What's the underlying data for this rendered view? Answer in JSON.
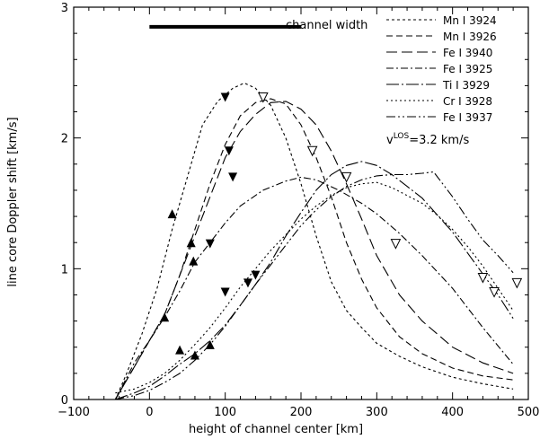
{
  "chart_data": {
    "type": "line",
    "title": "",
    "xlabel": "height of channel center [km]",
    "ylabel": "line core Doppler shift [km/s]",
    "xlim": [
      -100,
      500
    ],
    "ylim": [
      0,
      3
    ],
    "xticks": [
      "−100",
      "0",
      "100",
      "200",
      "300",
      "400",
      "500"
    ],
    "yticks": [
      "0",
      "1",
      "2",
      "3"
    ],
    "grid": false,
    "legend_position": "top-right",
    "annotation_channel_width": "channel width",
    "channel_width_bar": [
      0,
      200,
      2.85
    ],
    "annotation_vlos": "v",
    "annotation_vlos_sup": "LOS",
    "annotation_vlos_value": "=3.2 km/s",
    "series": [
      {
        "name": "Mn I 3924",
        "dash": "3,3",
        "x": [
          -45,
          -30,
          -10,
          10,
          30,
          50,
          70,
          90,
          110,
          125,
          140,
          160,
          180,
          200,
          220,
          240,
          260,
          280,
          300,
          330,
          360,
          400,
          440,
          480
        ],
        "y": [
          0.0,
          0.2,
          0.5,
          0.85,
          1.3,
          1.7,
          2.1,
          2.28,
          2.38,
          2.42,
          2.38,
          2.25,
          2.0,
          1.65,
          1.25,
          0.9,
          0.68,
          0.55,
          0.43,
          0.33,
          0.25,
          0.17,
          0.12,
          0.08
        ]
      },
      {
        "name": "Mn I 3926",
        "dash": "7,4",
        "x": [
          -45,
          -20,
          0,
          20,
          40,
          60,
          80,
          100,
          120,
          140,
          160,
          180,
          200,
          220,
          240,
          260,
          280,
          300,
          330,
          360,
          400,
          440,
          480
        ],
        "y": [
          0.0,
          0.25,
          0.45,
          0.65,
          0.95,
          1.3,
          1.65,
          1.95,
          2.17,
          2.27,
          2.3,
          2.26,
          2.1,
          1.85,
          1.55,
          1.2,
          0.92,
          0.7,
          0.48,
          0.35,
          0.24,
          0.18,
          0.15
        ]
      },
      {
        "name": "Fe I 3940",
        "dash": "12,5",
        "x": [
          -45,
          -20,
          0,
          20,
          40,
          60,
          80,
          100,
          120,
          140,
          160,
          180,
          200,
          220,
          240,
          260,
          280,
          300,
          330,
          360,
          400,
          440,
          480
        ],
        "y": [
          0.0,
          0.25,
          0.45,
          0.65,
          0.95,
          1.25,
          1.55,
          1.85,
          2.05,
          2.18,
          2.27,
          2.28,
          2.22,
          2.1,
          1.9,
          1.65,
          1.38,
          1.1,
          0.8,
          0.6,
          0.4,
          0.28,
          0.2
        ]
      },
      {
        "name": "Fe I 3925",
        "dash": "8,3,2,3",
        "x": [
          -45,
          -20,
          0,
          20,
          40,
          60,
          80,
          100,
          120,
          150,
          180,
          200,
          220,
          250,
          280,
          300,
          330,
          360,
          400,
          440,
          480
        ],
        "y": [
          0.0,
          0.28,
          0.45,
          0.63,
          0.83,
          1.05,
          1.2,
          1.35,
          1.48,
          1.6,
          1.67,
          1.7,
          1.68,
          1.6,
          1.5,
          1.42,
          1.27,
          1.1,
          0.85,
          0.55,
          0.27
        ]
      },
      {
        "name": "Ti I 3929",
        "dash": "14,3,2,3",
        "x": [
          -45,
          -20,
          0,
          20,
          40,
          60,
          80,
          100,
          120,
          140,
          160,
          180,
          200,
          220,
          240,
          260,
          280,
          300,
          320,
          340,
          360,
          380,
          400,
          420,
          440,
          460,
          480
        ],
        "y": [
          0.0,
          0.05,
          0.1,
          0.18,
          0.27,
          0.35,
          0.45,
          0.57,
          0.72,
          0.88,
          1.05,
          1.25,
          1.43,
          1.6,
          1.72,
          1.79,
          1.82,
          1.79,
          1.72,
          1.63,
          1.54,
          1.41,
          1.28,
          1.12,
          0.96,
          0.8,
          0.62
        ]
      },
      {
        "name": "Cr I 3928",
        "dash": "2,3",
        "x": [
          -45,
          -20,
          0,
          20,
          40,
          60,
          80,
          100,
          120,
          140,
          160,
          180,
          200,
          220,
          240,
          260,
          280,
          300,
          320,
          340,
          360,
          380,
          400,
          420,
          440,
          460,
          480
        ],
        "y": [
          0.05,
          0.08,
          0.13,
          0.2,
          0.3,
          0.42,
          0.55,
          0.7,
          0.86,
          1.0,
          1.14,
          1.26,
          1.38,
          1.48,
          1.56,
          1.62,
          1.65,
          1.66,
          1.62,
          1.56,
          1.5,
          1.41,
          1.3,
          1.17,
          1.02,
          0.85,
          0.68
        ]
      },
      {
        "name": "Fe I 3937",
        "dash": "10,3,2,3,2,3",
        "x": [
          -45,
          -20,
          0,
          20,
          40,
          60,
          80,
          100,
          120,
          140,
          160,
          180,
          200,
          220,
          240,
          260,
          280,
          300,
          320,
          340,
          360,
          375,
          400,
          420,
          440,
          460,
          480
        ],
        "y": [
          0.0,
          0.03,
          0.07,
          0.13,
          0.2,
          0.3,
          0.42,
          0.56,
          0.72,
          0.88,
          1.03,
          1.18,
          1.33,
          1.45,
          1.55,
          1.63,
          1.68,
          1.71,
          1.72,
          1.72,
          1.73,
          1.74,
          1.55,
          1.38,
          1.22,
          1.1,
          0.97
        ]
      }
    ],
    "markers_filled_up": [
      [
        30,
        1.42
      ],
      [
        55,
        1.2
      ],
      [
        58,
        1.06
      ],
      [
        20,
        0.63
      ],
      [
        40,
        0.38
      ],
      [
        60,
        0.34
      ],
      [
        80,
        0.42
      ]
    ],
    "markers_filled_down": [
      [
        100,
        2.31
      ],
      [
        105,
        1.9
      ],
      [
        110,
        1.7
      ],
      [
        80,
        1.19
      ],
      [
        100,
        0.82
      ],
      [
        130,
        0.89
      ],
      [
        140,
        0.95
      ]
    ],
    "markers_open_down": [
      [
        150,
        2.31
      ],
      [
        215,
        1.9
      ],
      [
        260,
        1.7
      ],
      [
        325,
        1.19
      ],
      [
        440,
        0.93
      ],
      [
        455,
        0.82
      ],
      [
        485,
        0.89
      ]
    ]
  }
}
